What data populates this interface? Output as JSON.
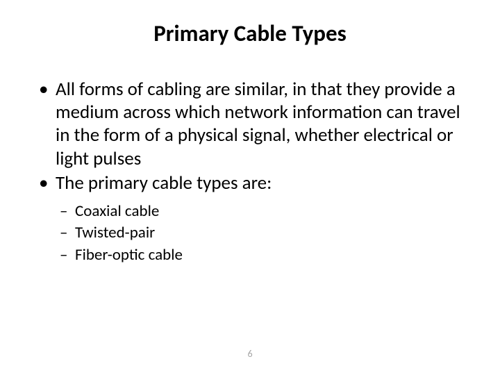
{
  "slide": {
    "title": "Primary Cable Types",
    "title_fontsize": 33,
    "title_fontweight": 700,
    "title_color": "#000000",
    "body_fontsize": 27,
    "body_lineheight": 1.23,
    "body_color": "#000000",
    "sub_fontsize": 23,
    "sub_lineheight": 1.28,
    "background_color": "#ffffff",
    "bullets": [
      {
        "text": "All forms of cabling are similar, in that they provide a medium across which network information can travel in the form of a physical signal, whether electrical or light pulses"
      },
      {
        "text": "The primary cable types are:",
        "sub": [
          "Coaxial cable",
          "Twisted-pair",
          "Fiber-optic cable"
        ]
      }
    ],
    "page_number": "6",
    "page_number_fontsize": 14,
    "page_number_color": "#a6a6a6"
  }
}
